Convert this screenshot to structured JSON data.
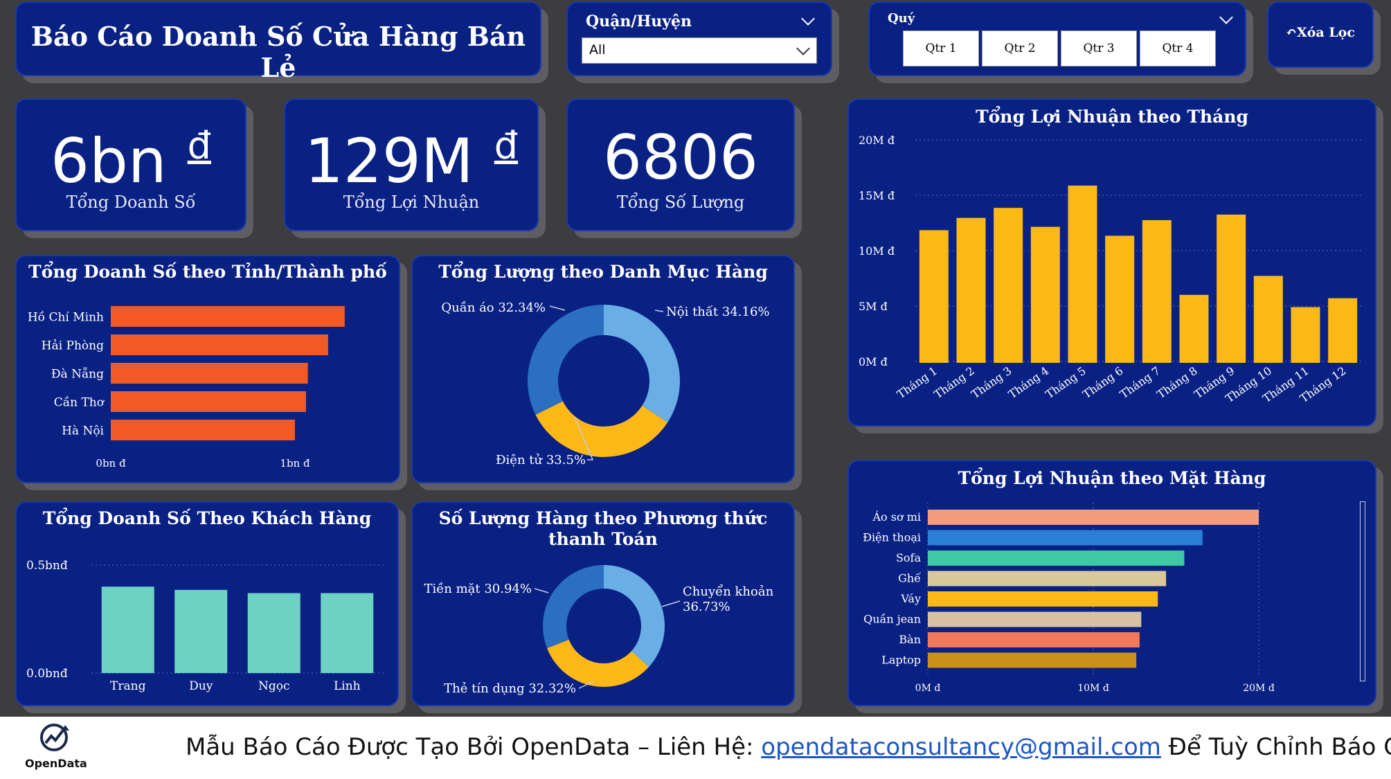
{
  "title": "Báo Cáo Doanh Số Cửa Hàng Bán Lẻ",
  "slicers": {
    "district": {
      "label": "Quận/Huyện",
      "value": "All"
    },
    "quarter": {
      "label": "Quý",
      "options": [
        "Qtr 1",
        "Qtr 2",
        "Qtr 3",
        "Qtr 4"
      ]
    },
    "clear_label": "Xóa Lọc"
  },
  "kpis": [
    {
      "value": "6bn",
      "unit": "đ",
      "label": "Tổng Doanh Số"
    },
    {
      "value": "129M",
      "unit": "đ",
      "label": "Tổng Lợi Nhuận"
    },
    {
      "value": "6806",
      "unit": "",
      "label": "Tổng Số Lượng"
    }
  ],
  "chart_data": [
    {
      "id": "revenue_by_city",
      "type": "bar",
      "orientation": "horizontal",
      "title": "Tổng Doanh Số theo Tỉnh/Thành phố",
      "categories": [
        "Hồ Chí Minh",
        "Hải Phòng",
        "Đà Nẵng",
        "Cần Thơ",
        "Hà Nội"
      ],
      "values": [
        1.27,
        1.18,
        1.07,
        1.06,
        1.0
      ],
      "unit": "bn đ",
      "xlim": [
        0,
        1.5
      ],
      "xticks": [
        "0bn đ",
        "1bn đ"
      ],
      "color": "#f15a24"
    },
    {
      "id": "qty_by_category",
      "type": "pie",
      "donut": true,
      "title": "Tổng Lượng theo Danh Mục Hàng",
      "labels": [
        "Nội thất 34.16%",
        "Điện tử 33.5%",
        "Quần áo 32.34%"
      ],
      "values": [
        34.16,
        33.5,
        32.34
      ],
      "colors": [
        "#6aaee6",
        "#fbb817",
        "#2a6fc0"
      ]
    },
    {
      "id": "revenue_by_customer",
      "type": "bar",
      "title": "Tổng Doanh Số Theo Khách Hàng",
      "categories": [
        "Trang",
        "Duy",
        "Ngọc",
        "Linh"
      ],
      "values": [
        0.4,
        0.385,
        0.37,
        0.37
      ],
      "ylim": [
        0,
        0.5
      ],
      "yticks": [
        "0.5bnđ",
        "0.0bnđ"
      ],
      "color": "#6dd2c2"
    },
    {
      "id": "qty_by_payment",
      "type": "pie",
      "donut": true,
      "title": "Số Lượng Hàng theo Phương thức thanh Toán",
      "labels": [
        "Chuyển khoản 36.73%",
        "Thẻ tín dụng 32.32%",
        "Tiền mặt 30.94%"
      ],
      "values": [
        36.73,
        32.32,
        30.94
      ],
      "colors": [
        "#6aaee6",
        "#fbb817",
        "#2a6fc0"
      ]
    },
    {
      "id": "profit_by_month",
      "type": "bar",
      "title": "Tổng Lợi Nhuận theo Tháng",
      "categories": [
        "Tháng 1",
        "Tháng 2",
        "Tháng 3",
        "Tháng 4",
        "Tháng 5",
        "Tháng 6",
        "Tháng 7",
        "Tháng 8",
        "Tháng 9",
        "Tháng 10",
        "Tháng 11",
        "Tháng 12"
      ],
      "values": [
        11.9,
        13.0,
        13.9,
        12.2,
        15.9,
        11.4,
        12.8,
        6.1,
        13.3,
        7.8,
        5.0,
        5.8
      ],
      "unit": "M đ",
      "ylim": [
        0,
        20
      ],
      "yticks": [
        "20M đ",
        "15M đ",
        "10M đ",
        "5M đ",
        "0M đ"
      ],
      "color": "#fbb817"
    },
    {
      "id": "profit_by_product",
      "type": "bar",
      "orientation": "horizontal",
      "title": "Tổng Lợi Nhuận theo Mặt Hàng",
      "categories": [
        "Áo sơ mi",
        "Điện thoại",
        "Sofa",
        "Ghế",
        "Váy",
        "Quần jean",
        "Bàn",
        "Laptop"
      ],
      "values": [
        20.0,
        16.6,
        15.5,
        14.4,
        13.9,
        12.9,
        12.8,
        12.6
      ],
      "unit": "M đ",
      "xlim": [
        0,
        20
      ],
      "xticks": [
        "0M đ",
        "10M đ",
        "20M đ"
      ],
      "colors": [
        "#f79b7f",
        "#2a7fd4",
        "#3ec8a6",
        "#d8c89a",
        "#fbb817",
        "#d9c2a4",
        "#f4785a",
        "#c9901a"
      ]
    }
  ],
  "footer": {
    "logo": "OpenData",
    "text_before": "Mẫu Báo Cáo Được Tạo Bởi OpenData – Liên Hệ: ",
    "email": "opendataconsultancy@gmail.com",
    "text_after": " Để Tuỳ Chỉnh Báo Cáo"
  }
}
